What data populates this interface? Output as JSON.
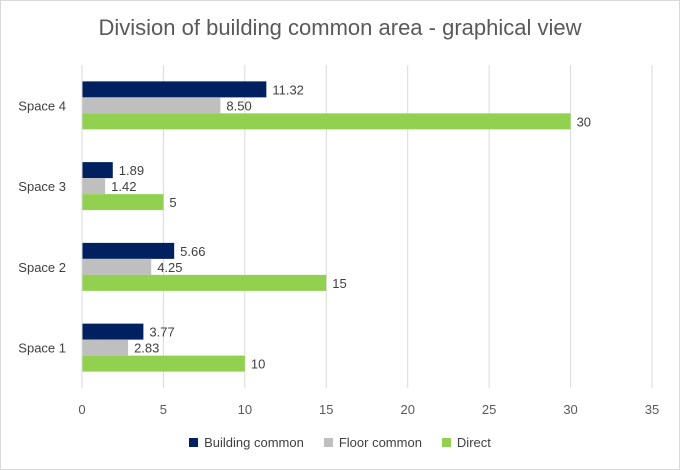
{
  "chart_data": {
    "type": "bar",
    "orientation": "horizontal",
    "title": "Division of building common area - graphical view",
    "categories": [
      "Space 1",
      "Space 2",
      "Space 3",
      "Space 4"
    ],
    "series": [
      {
        "name": "Building common",
        "color": "#002060",
        "values": [
          3.77,
          5.66,
          1.89,
          11.32
        ],
        "labels": [
          "3.77",
          "5.66",
          "1.89",
          "11.32"
        ]
      },
      {
        "name": "Floor common",
        "color": "#bfbfbf",
        "values": [
          2.83,
          4.25,
          1.42,
          8.5
        ],
        "labels": [
          "2.83",
          "4.25",
          "1.42",
          "8.50"
        ]
      },
      {
        "name": "Direct",
        "color": "#92d050",
        "values": [
          10,
          15,
          5,
          30
        ],
        "labels": [
          "10",
          "15",
          "5",
          "30"
        ]
      }
    ],
    "xlim": [
      0,
      35
    ],
    "xticks": [
      0,
      5,
      10,
      15,
      20,
      25,
      30,
      35
    ],
    "grid": true,
    "legend_position": "bottom"
  }
}
